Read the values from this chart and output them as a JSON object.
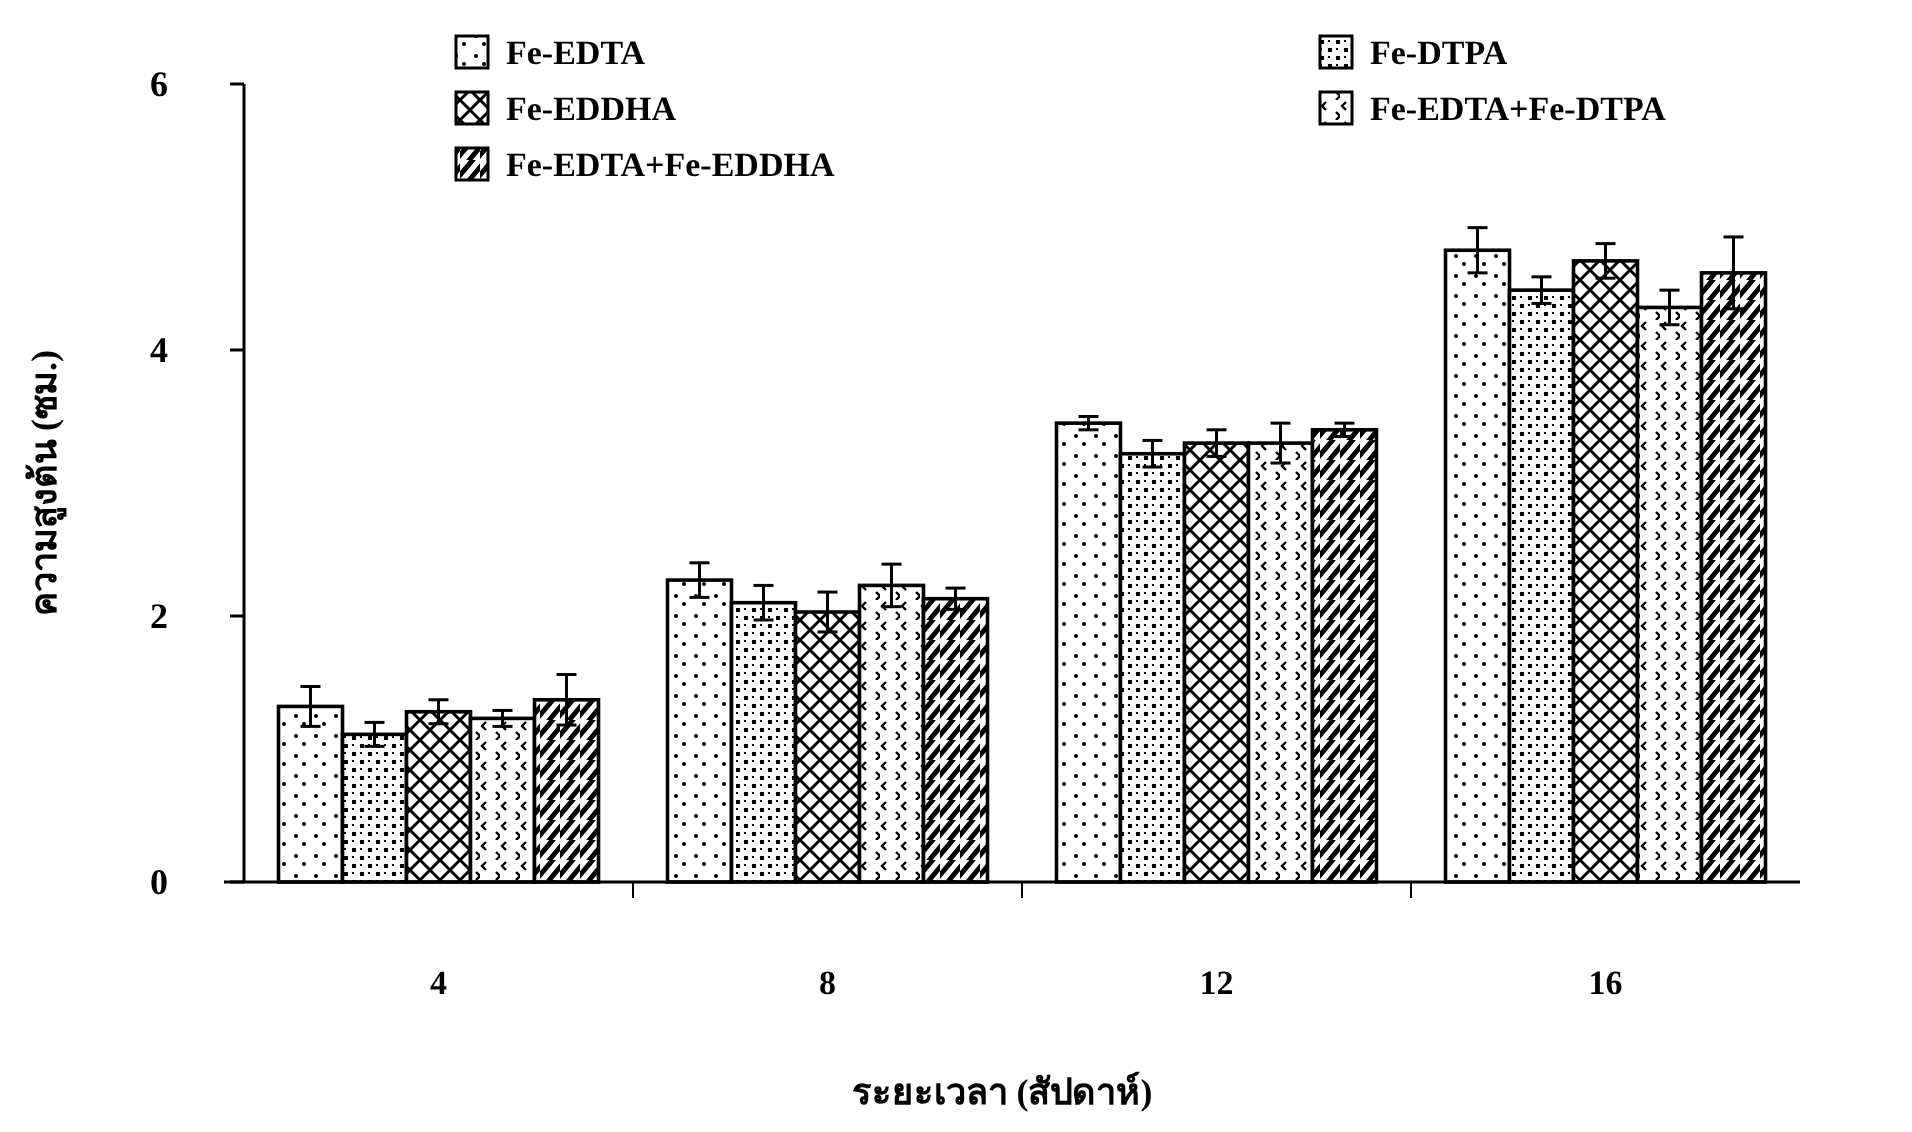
{
  "chart_data": {
    "type": "bar",
    "xlabel": "ระยะเวลา (สัปดาห์)",
    "ylabel": "ความสูงต้น (ซม.)",
    "categories": [
      "4",
      "8",
      "12",
      "16"
    ],
    "series": [
      {
        "name": "Fe-EDTA",
        "color": "#000000",
        "values": [
          1.32,
          2.27,
          3.45,
          4.75
        ],
        "errors": [
          0.15,
          0.13,
          0.05,
          0.17
        ]
      },
      {
        "name": "Fe-DTPA",
        "color": "#000000",
        "values": [
          1.11,
          2.1,
          3.22,
          4.45
        ],
        "errors": [
          0.09,
          0.13,
          0.1,
          0.1
        ]
      },
      {
        "name": "Fe-EDDHA",
        "color": "#000000",
        "values": [
          1.28,
          2.03,
          3.3,
          4.67
        ],
        "errors": [
          0.09,
          0.15,
          0.1,
          0.13
        ]
      },
      {
        "name": "Fe-EDTA+Fe-DTPA",
        "color": "#000000",
        "values": [
          1.23,
          2.23,
          3.3,
          4.32
        ],
        "errors": [
          0.06,
          0.16,
          0.15,
          0.13
        ]
      },
      {
        "name": "Fe-EDTA+Fe-EDDHA",
        "color": "#000000",
        "values": [
          1.37,
          2.13,
          3.4,
          4.58
        ],
        "errors": [
          0.19,
          0.08,
          0.05,
          0.27
        ]
      }
    ],
    "ylim": [
      0,
      6
    ],
    "yticks": [
      0,
      2,
      4,
      6
    ],
    "grid": false,
    "legend": "top"
  }
}
